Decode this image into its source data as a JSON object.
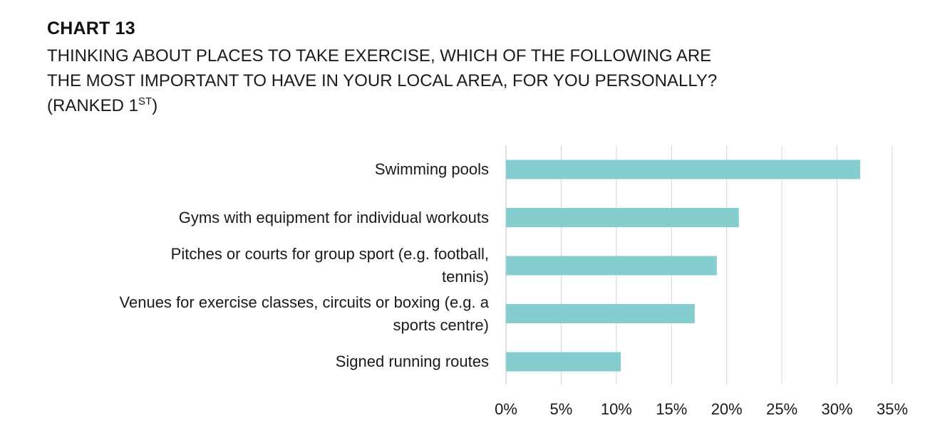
{
  "header": {
    "chart_number": "CHART 13",
    "title_lines": [
      "THINKING ABOUT PLACES TO TAKE EXERCISE, WHICH OF THE FOLLOWING ARE",
      "THE MOST IMPORTANT TO HAVE IN YOUR LOCAL AREA, FOR YOU PERSONALLY?"
    ],
    "subtitle_prefix": "(RANKED 1",
    "subtitle_superscript": "ST",
    "subtitle_suffix": ")"
  },
  "colors": {
    "bar": "#86cdcf",
    "grid": "#d4d4d4",
    "axis": "#bfbfbf",
    "text": "#1a1a1a"
  },
  "chart_data": {
    "type": "bar",
    "orientation": "horizontal",
    "categories": [
      [
        "Swimming pools"
      ],
      [
        "Gyms with equipment for individual workouts"
      ],
      [
        "Pitches or courts for group sport (e.g. football,",
        "tennis)"
      ],
      [
        "Venues for exercise classes, circuits or boxing (e.g. a",
        "sports centre)"
      ],
      [
        "Signed running routes"
      ]
    ],
    "values": [
      32.1,
      21.1,
      19.1,
      17.1,
      10.4
    ],
    "unit": "%",
    "xlim": [
      0,
      35
    ],
    "x_ticks": [
      0,
      5,
      10,
      15,
      20,
      25,
      30,
      35
    ],
    "x_tick_labels": [
      "0%",
      "5%",
      "10%",
      "15%",
      "20%",
      "25%",
      "30%",
      "35%"
    ],
    "grid": true,
    "legend": "none"
  }
}
